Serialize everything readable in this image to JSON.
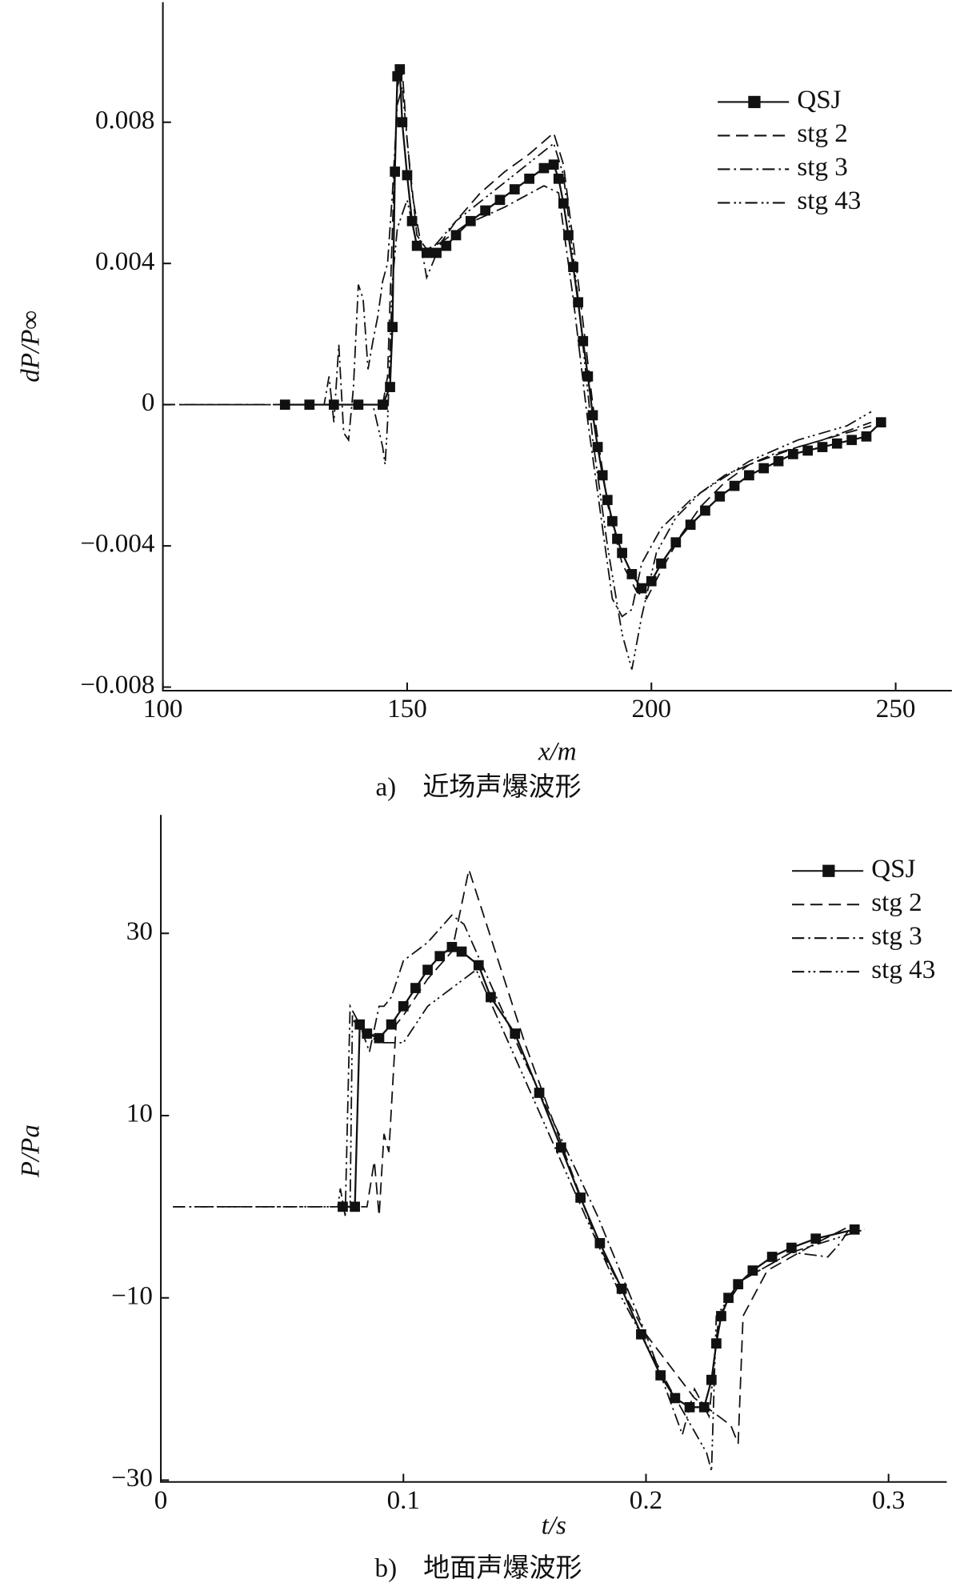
{
  "chart_data": [
    {
      "type": "line",
      "caption": "a)　近场声爆波形",
      "xlabel": "x/m",
      "ylabel": "dP/P∞",
      "xlim": [
        100,
        261.5
      ],
      "ylim": [
        -0.0081,
        0.0114
      ],
      "xticks": [
        100,
        150,
        200,
        250
      ],
      "yticks": [
        {
          "value": -0.008,
          "label": "−0.008"
        },
        {
          "value": -0.004,
          "label": "−0.004"
        },
        0,
        0.004,
        0.008
      ],
      "legend": "upper right",
      "series": [
        {
          "name": "QSJ",
          "color": "#111111",
          "dash": "none",
          "marker": "square",
          "x": [
            125,
            130,
            135,
            140,
            145,
            146.5,
            147,
            147.5,
            148,
            148.5,
            149,
            150,
            151,
            152,
            154,
            156,
            158,
            160,
            163,
            166,
            169,
            172,
            175,
            178,
            180,
            181,
            182,
            183,
            184,
            185,
            186,
            187,
            188,
            189,
            190,
            191,
            192,
            193,
            194,
            196,
            198,
            200,
            202,
            205,
            208,
            211,
            214,
            217,
            220,
            223,
            226,
            229,
            232,
            235,
            238,
            241,
            244,
            247
          ],
          "values": [
            0,
            0,
            0,
            0,
            0,
            0.0005,
            0.0022,
            0.0066,
            0.0093,
            0.0095,
            0.008,
            0.0065,
            0.0052,
            0.0045,
            0.0043,
            0.0043,
            0.0045,
            0.0048,
            0.0052,
            0.0055,
            0.0058,
            0.0061,
            0.0064,
            0.0067,
            0.0068,
            0.0064,
            0.0057,
            0.0048,
            0.0039,
            0.0029,
            0.0018,
            0.0008,
            -0.0003,
            -0.0012,
            -0.002,
            -0.0027,
            -0.0033,
            -0.0038,
            -0.0042,
            -0.0048,
            -0.0052,
            -0.005,
            -0.0045,
            -0.0039,
            -0.0034,
            -0.003,
            -0.0026,
            -0.0023,
            -0.002,
            -0.0018,
            -0.0016,
            -0.0014,
            -0.0013,
            -0.0012,
            -0.0011,
            -0.001,
            -0.0009,
            -0.0005
          ]
        },
        {
          "name": "stg 2",
          "color": "#111111",
          "dash": "12,6",
          "marker": "none",
          "x": [
            100,
            130,
            140,
            145,
            146,
            147,
            148,
            149,
            150,
            152,
            154,
            157,
            160,
            165,
            170,
            175,
            180,
            182,
            185,
            188,
            191,
            194,
            197,
            199,
            202,
            206,
            210,
            215,
            220,
            230,
            240,
            245
          ],
          "values": [
            0,
            0,
            0,
            0,
            0.0008,
            0.005,
            0.009,
            0.0095,
            0.0075,
            0.0048,
            0.0044,
            0.0046,
            0.0052,
            0.006,
            0.0066,
            0.0071,
            0.0077,
            0.0068,
            0.0035,
            0.0,
            -0.0028,
            -0.0045,
            -0.0053,
            -0.0055,
            -0.0047,
            -0.0037,
            -0.0029,
            -0.0022,
            -0.0017,
            -0.0012,
            -0.0008,
            -0.0006
          ]
        },
        {
          "name": "stg 3",
          "color": "#111111",
          "dash": "12,4,2,4",
          "marker": "none",
          "x": [
            100,
            130,
            133,
            134,
            135,
            136,
            137,
            138,
            139,
            140,
            141,
            142,
            143,
            144,
            145,
            146,
            147,
            148,
            149,
            151,
            154,
            157,
            162,
            170,
            178,
            181,
            184,
            187,
            190,
            192,
            194,
            196,
            198,
            202,
            208,
            215,
            225,
            235,
            245
          ],
          "values": [
            0,
            0,
            0,
            0.0008,
            -0.0005,
            0.0017,
            -0.0008,
            -0.001,
            0.0005,
            0.0034,
            0.003,
            0.001,
            0.0018,
            0.0025,
            0.0035,
            0.004,
            0.006,
            0.0085,
            0.009,
            0.006,
            0.0036,
            0.0046,
            0.0051,
            0.0056,
            0.0062,
            0.006,
            0.003,
            -0.0005,
            -0.0035,
            -0.0055,
            -0.006,
            -0.0058,
            -0.0045,
            -0.0035,
            -0.0027,
            -0.002,
            -0.0014,
            -0.001,
            -0.0005
          ]
        },
        {
          "name": "stg 43",
          "color": "#111111",
          "dash": "12,4,2,3,2,4",
          "marker": "none",
          "x": [
            100,
            135,
            140,
            143,
            145,
            145.5,
            146,
            147,
            148,
            150,
            152,
            155,
            160,
            170,
            180,
            182,
            185,
            188,
            191,
            194,
            196,
            198,
            201,
            205,
            210,
            220,
            230,
            240,
            245
          ],
          "values": [
            0,
            0,
            0,
            0,
            -0.0012,
            -0.0017,
            -0.0005,
            0.0035,
            0.005,
            0.0058,
            0.0045,
            0.0044,
            0.0052,
            0.0063,
            0.0074,
            0.0065,
            0.003,
            -0.001,
            -0.004,
            -0.0065,
            -0.0075,
            -0.006,
            -0.0042,
            -0.0032,
            -0.0025,
            -0.0016,
            -0.001,
            -0.0006,
            -0.0002
          ]
        }
      ]
    },
    {
      "type": "line",
      "caption": "b)　地面声爆波形",
      "xlabel": "t/s",
      "ylabel": "P/Pa",
      "xlim": [
        0,
        0.324
      ],
      "ylim": [
        -30.2,
        43
      ],
      "xticks": [
        0,
        0.1,
        0.2,
        0.3
      ],
      "yticks": [
        {
          "value": -30,
          "label": "−30"
        },
        {
          "value": -10,
          "label": "−10"
        },
        10,
        30
      ],
      "legend": "upper right",
      "series": [
        {
          "name": "QSJ",
          "color": "#111111",
          "dash": "none",
          "marker": "square",
          "x": [
            0.075,
            0.08,
            0.082,
            0.085,
            0.09,
            0.095,
            0.1,
            0.105,
            0.11,
            0.115,
            0.12,
            0.124,
            0.131,
            0.136,
            0.146,
            0.156,
            0.165,
            0.173,
            0.181,
            0.19,
            0.198,
            0.206,
            0.212,
            0.218,
            0.224,
            0.227,
            0.229,
            0.231,
            0.234,
            0.238,
            0.244,
            0.252,
            0.26,
            0.27,
            0.286
          ],
          "values": [
            0,
            0,
            20,
            19,
            18.5,
            20,
            22,
            24,
            26,
            27.5,
            28.5,
            28,
            26.5,
            23,
            19,
            12.5,
            6.5,
            1,
            -4,
            -9,
            -14,
            -18.5,
            -21,
            -22,
            -22,
            -19,
            -15,
            -12,
            -10,
            -8.5,
            -7,
            -5.5,
            -4.5,
            -3.5,
            -2.5
          ]
        },
        {
          "name": "stg 2",
          "color": "#111111",
          "dash": "12,6",
          "marker": "none",
          "x": [
            0.075,
            0.085,
            0.088,
            0.09,
            0.092,
            0.094,
            0.097,
            0.1,
            0.11,
            0.12,
            0.127,
            0.15,
            0.18,
            0.2,
            0.22,
            0.235,
            0.238,
            0.24,
            0.25,
            0.27,
            0.285
          ],
          "values": [
            0,
            0,
            5,
            -1,
            8,
            6,
            20,
            21,
            25,
            28,
            37,
            18,
            -4,
            -14,
            -21,
            -24,
            -26,
            -12,
            -7,
            -4,
            -2
          ]
        },
        {
          "name": "stg 3",
          "color": "#111111",
          "dash": "12,4,2,4",
          "marker": "none",
          "x": [
            0.005,
            0.073,
            0.074,
            0.076,
            0.078,
            0.082,
            0.086,
            0.09,
            0.092,
            0.095,
            0.1,
            0.11,
            0.12,
            0.125,
            0.15,
            0.18,
            0.2,
            0.215,
            0.22,
            0.226,
            0.23,
            0.24,
            0.26,
            0.275,
            0.28,
            0.285
          ],
          "values": [
            0,
            0,
            2,
            -1,
            22,
            20,
            17,
            22,
            22,
            23,
            27,
            29,
            32,
            31,
            16,
            -1,
            -14,
            -25,
            -20,
            -23,
            -12,
            -8,
            -5,
            -5.5,
            -4,
            -2
          ]
        },
        {
          "name": "stg 43",
          "color": "#111111",
          "dash": "12,4,2,3,2,4",
          "marker": "none",
          "x": [
            0.005,
            0.078,
            0.079,
            0.08,
            0.09,
            0.1,
            0.11,
            0.12,
            0.13,
            0.16,
            0.19,
            0.21,
            0.225,
            0.227,
            0.229,
            0.24,
            0.26,
            0.29
          ],
          "values": [
            0,
            0,
            21,
            20,
            18,
            18,
            22,
            24,
            26,
            8,
            -10,
            -20,
            -27,
            -29,
            -12,
            -8,
            -5,
            -2.5
          ]
        }
      ]
    }
  ]
}
